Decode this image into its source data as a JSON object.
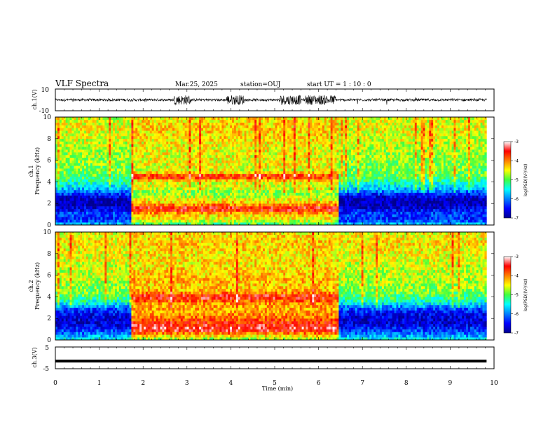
{
  "header": {
    "title": "VLF Spectra",
    "date": "Mar.25, 2025",
    "station": "station=OUJ",
    "start": "start  UT =   1 : 10 : 0"
  },
  "chart_data": [
    {
      "type": "line",
      "name": "ch1-waveform",
      "ylabel": "ch.1(V)",
      "ylim": [
        -10,
        10
      ],
      "yticks": [
        "10",
        "-10"
      ],
      "x_range_min": [
        0,
        9.83
      ],
      "baseline": 0,
      "bursts_min": [
        [
          2.7,
          3.1
        ],
        [
          3.9,
          4.3
        ],
        [
          5.1,
          5.6
        ],
        [
          5.7,
          6.4
        ]
      ],
      "color": "#000000"
    },
    {
      "type": "heatmap",
      "name": "ch1-spectrogram",
      "ylabel_line1": "ch.1",
      "ylabel_line2": "Frequency  (kHz)",
      "xlim": [
        0,
        10
      ],
      "data_x_max": 9.83,
      "ylim": [
        0,
        10
      ],
      "yticks": [
        "0",
        "2",
        "4",
        "6",
        "8",
        "10"
      ],
      "colorbar": {
        "label": "log(PSD)(V²/Hz)",
        "min": -7,
        "max": -3,
        "ticks": [
          "-3",
          "-4",
          "-5",
          "-6",
          "-7"
        ]
      },
      "segments_min": [
        [
          0,
          1.75
        ],
        [
          1.75,
          6.45
        ],
        [
          6.45,
          9.83
        ]
      ],
      "profile_khz": [
        0,
        0.5,
        1,
        1.5,
        2,
        2.5,
        3,
        3.5,
        4,
        4.5,
        5,
        5.5,
        6,
        7,
        8,
        9,
        10
      ],
      "quiet_log_psd": [
        -5.6,
        -6.4,
        -6.2,
        -6.6,
        -6.9,
        -6.8,
        -6.2,
        -5.6,
        -5.3,
        -5.0,
        -4.9,
        -4.9,
        -4.8,
        -4.7,
        -4.6,
        -4.5,
        -4.6
      ],
      "active_log_psd": [
        -5.2,
        -4.5,
        -4.3,
        -3.4,
        -4.2,
        -4.6,
        -4.9,
        -4.5,
        -4.6,
        -3.5,
        -4.6,
        -4.5,
        -4.5,
        -4.5,
        -4.4,
        -4.3,
        -4.4
      ]
    },
    {
      "type": "heatmap",
      "name": "ch2-spectrogram",
      "ylabel_line1": "ch.2",
      "ylabel_line2": "Frequency  (kHz)",
      "xlim": [
        0,
        10
      ],
      "data_x_max": 9.83,
      "ylim": [
        0,
        10
      ],
      "yticks": [
        "0",
        "2",
        "4",
        "6",
        "8",
        "10"
      ],
      "colorbar": {
        "label": "log(PSD)(V²/Hz)",
        "min": -7,
        "max": -3,
        "ticks": [
          "-3",
          "-4",
          "-5",
          "-6",
          "-7"
        ]
      },
      "segments_min": [
        [
          0,
          1.75
        ],
        [
          1.75,
          6.45
        ],
        [
          6.45,
          9.83
        ]
      ],
      "profile_khz": [
        0,
        0.5,
        1,
        1.5,
        2,
        2.5,
        3,
        3.5,
        4,
        4.5,
        5,
        5.5,
        6,
        7,
        8,
        9,
        10
      ],
      "quiet_log_psd": [
        -5.4,
        -6.0,
        -6.3,
        -6.7,
        -6.7,
        -6.5,
        -6.1,
        -5.4,
        -5.1,
        -4.9,
        -4.8,
        -4.7,
        -4.7,
        -4.6,
        -4.5,
        -4.4,
        -4.5
      ],
      "active_log_psd": [
        -4.9,
        -4.2,
        -3.3,
        -3.6,
        -3.9,
        -4.1,
        -4.2,
        -4.0,
        -3.4,
        -4.2,
        -4.3,
        -4.2,
        -4.3,
        -4.4,
        -4.4,
        -4.3,
        -4.4
      ]
    },
    {
      "type": "line",
      "name": "ch3-trace",
      "ylabel": "ch.3(V)",
      "ylim": [
        -5,
        5
      ],
      "yticks": [
        "5",
        "-5"
      ],
      "value": -1.5,
      "x_range_min": [
        0,
        9.83
      ],
      "color": "#000000"
    }
  ],
  "xaxis": {
    "label": "Time  (min)",
    "range": [
      0,
      10
    ],
    "ticks": [
      "0",
      "1",
      "2",
      "3",
      "4",
      "5",
      "6",
      "7",
      "8",
      "9",
      "10"
    ]
  }
}
